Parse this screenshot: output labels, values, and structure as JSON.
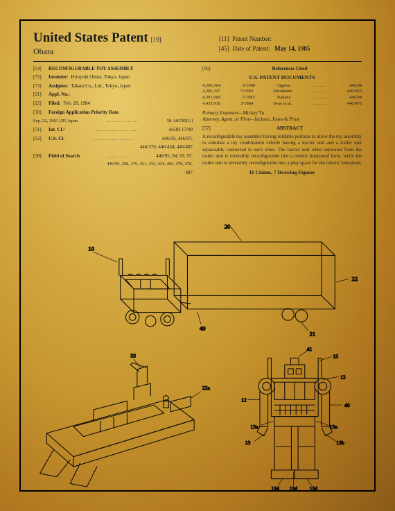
{
  "header": {
    "country": "United States Patent",
    "code19": "[19]",
    "inventor_surname": "Obara",
    "code11": "[11]",
    "patent_number_label": "Patent Number:",
    "code45": "[45]",
    "date_label": "Date of Patent:",
    "date_value": "May 14, 1985"
  },
  "left_col": {
    "r54": {
      "n": "[54]",
      "l": "RECONFIGURABLE TOY ASSEMBLY"
    },
    "r75": {
      "n": "[75]",
      "l": "Inventor:",
      "v": "Hiroyuki Obara, Tokyo, Japan"
    },
    "r73": {
      "n": "[73]",
      "l": "Assignee:",
      "v": "Takara Co., Ltd., Tokyo, Japan"
    },
    "r21": {
      "n": "[21]",
      "l": "Appl. No.:"
    },
    "r22": {
      "n": "[22]",
      "l": "Filed:",
      "v": "Feb. 28, 1984"
    },
    "r30": {
      "n": "[30]",
      "l": "Foreign Application Priority Data"
    },
    "r30d": {
      "d": "Sep. 22, 1983 [JP]   Japan",
      "v": "58-146785[U]"
    },
    "r51": {
      "n": "[51]",
      "l": "Int. Cl.³",
      "v": "A63H 17/00"
    },
    "r52": {
      "n": "[52]",
      "l": "U.S. Cl.",
      "v": "446/95; 446/97;"
    },
    "r52b": {
      "v": "446/376; 446/434; 446/487"
    },
    "r58": {
      "n": "[58]",
      "l": "Field of Search",
      "v": "446/95, 94, 93, 97,"
    },
    "r58b": {
      "v": "446/99, 268, 376, 431, 433, 434, 465, 470, 478,"
    },
    "r58c": {
      "v": "487"
    }
  },
  "right_col": {
    "r56": {
      "n": "[56]",
      "l": "References Cited"
    },
    "uspd": "U.S. PATENT DOCUMENTS",
    "refs": [
      {
        "a": "4,206,564",
        "b": "6/1980",
        "c": "Ogawa",
        "d": "446/94"
      },
      {
        "a": "4,382,347",
        "b": "5/1983",
        "c": "Murakami",
        "d": "446/433"
      },
      {
        "a": "4,391,060",
        "b": "7/1983",
        "c": "Nakane",
        "d": "446/94"
      },
      {
        "a": "4,435,916",
        "b": "3/1984",
        "c": "Iwao et al.",
        "d": "446/470"
      }
    ],
    "examiner_l": "Primary Examiner—",
    "examiner_v": "Mickey Yu",
    "firm_l": "Attorney, Agent, or Firm—",
    "firm_v": "Jackson, Jones & Price",
    "r57": {
      "n": "[57]",
      "l": "ABSTRACT"
    },
    "abstract": "A reconfigurable toy assembly having foldable portions to allow the toy assembly to simulate a toy combination vehicle having a tractor unit and a trailer unit separatably connected to each other. The tractor unit when separated from the trailer unit is reversibly reconfigurable into a robotic humanoid form, while the trailer unit is reversibly reconfigurable into a play space for the robotic humanoid.",
    "claims": "11 Claims, 7 Drawing Figures"
  },
  "fig_labels": {
    "f1": [
      "10",
      "20",
      "22",
      "21",
      "49"
    ],
    "f3": [
      "41",
      "15",
      "12",
      "12",
      "40",
      "13a",
      "13a",
      "13",
      "13b",
      "13d",
      "13d",
      "13d",
      "33",
      "22a"
    ]
  },
  "style": {
    "stroke": "#0a0a0a",
    "stroke_w": 1.1,
    "font": "7px serif"
  }
}
